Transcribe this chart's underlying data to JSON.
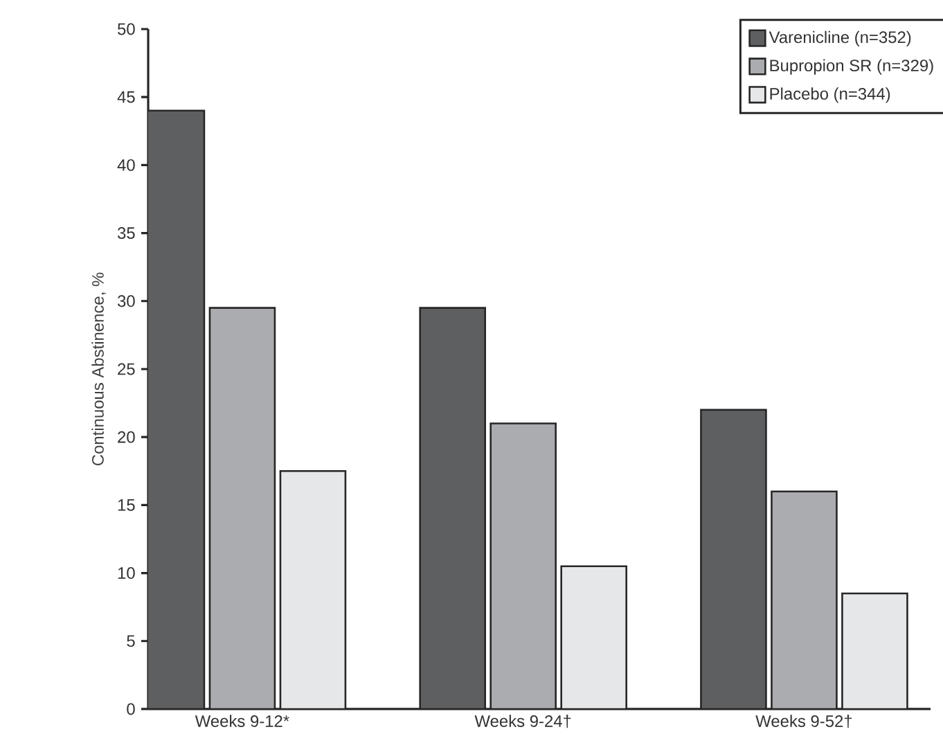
{
  "chart_data": {
    "type": "bar",
    "ylabel": "Continuous Abstinence, %",
    "categories": [
      "Weeks 9-12*",
      "Weeks 9-24†",
      "Weeks 9-52†"
    ],
    "series": [
      {
        "name": "Varenicline (n=352)",
        "color": "#5e5f61",
        "values": [
          44,
          29.5,
          22
        ]
      },
      {
        "name": "Bupropion SR (n=329)",
        "color": "#abacaf",
        "values": [
          29.5,
          21,
          16
        ]
      },
      {
        "name": "Placebo (n=344)",
        "color": "#e6e7e8",
        "values": [
          17.5,
          10.5,
          8.5
        ]
      }
    ],
    "ylim": [
      0,
      50
    ],
    "yticks": [
      0,
      5,
      10,
      15,
      20,
      25,
      30,
      35,
      40,
      45,
      50
    ],
    "legend": "top right",
    "grid": false
  }
}
